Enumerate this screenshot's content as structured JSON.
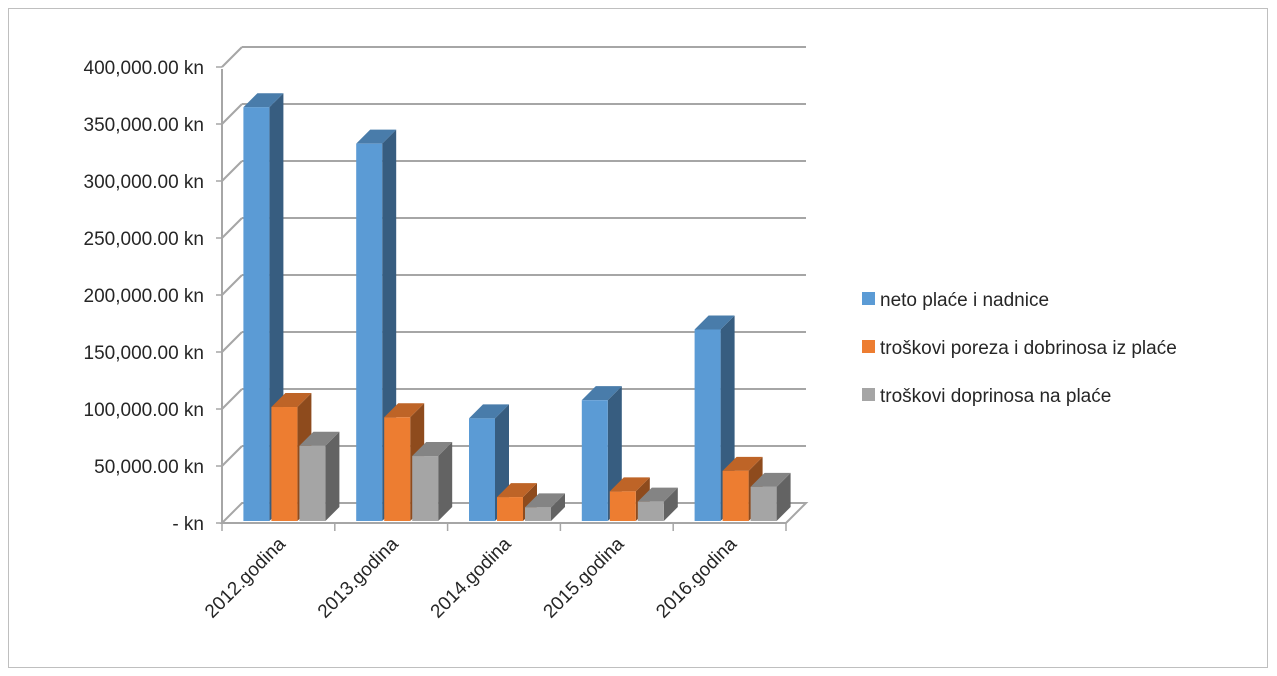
{
  "chart_data": {
    "type": "bar",
    "categories": [
      "2012.godina",
      "2013.godina",
      "2014.godina",
      "2015.godina",
      "2016.godina"
    ],
    "series": [
      {
        "name": "neto plaće i nadnice",
        "values": [
          370000,
          338000,
          97000,
          113000,
          175000
        ],
        "color": "#5b9bd5"
      },
      {
        "name": "troškovi poreza i dobrinosa iz plaće",
        "values": [
          107000,
          98000,
          28000,
          33000,
          51000
        ],
        "color": "#ed7d31"
      },
      {
        "name": "troškovi doprinosa na plaće",
        "values": [
          73000,
          64000,
          19000,
          24000,
          37000
        ],
        "color": "#a5a5a5"
      }
    ],
    "ylim": [
      0,
      400000
    ],
    "yticks": [
      0,
      50000,
      100000,
      150000,
      200000,
      250000,
      300000,
      350000,
      400000
    ],
    "ytick_labels": [
      "-   kn",
      "50,000.00 kn",
      "100,000.00 kn",
      "150,000.00 kn",
      "200,000.00 kn",
      "250,000.00 kn",
      "300,000.00 kn",
      "350,000.00 kn",
      "400,000.00 kn"
    ],
    "grid": true,
    "legend_position": "right",
    "style": "3d-clustered-column"
  }
}
